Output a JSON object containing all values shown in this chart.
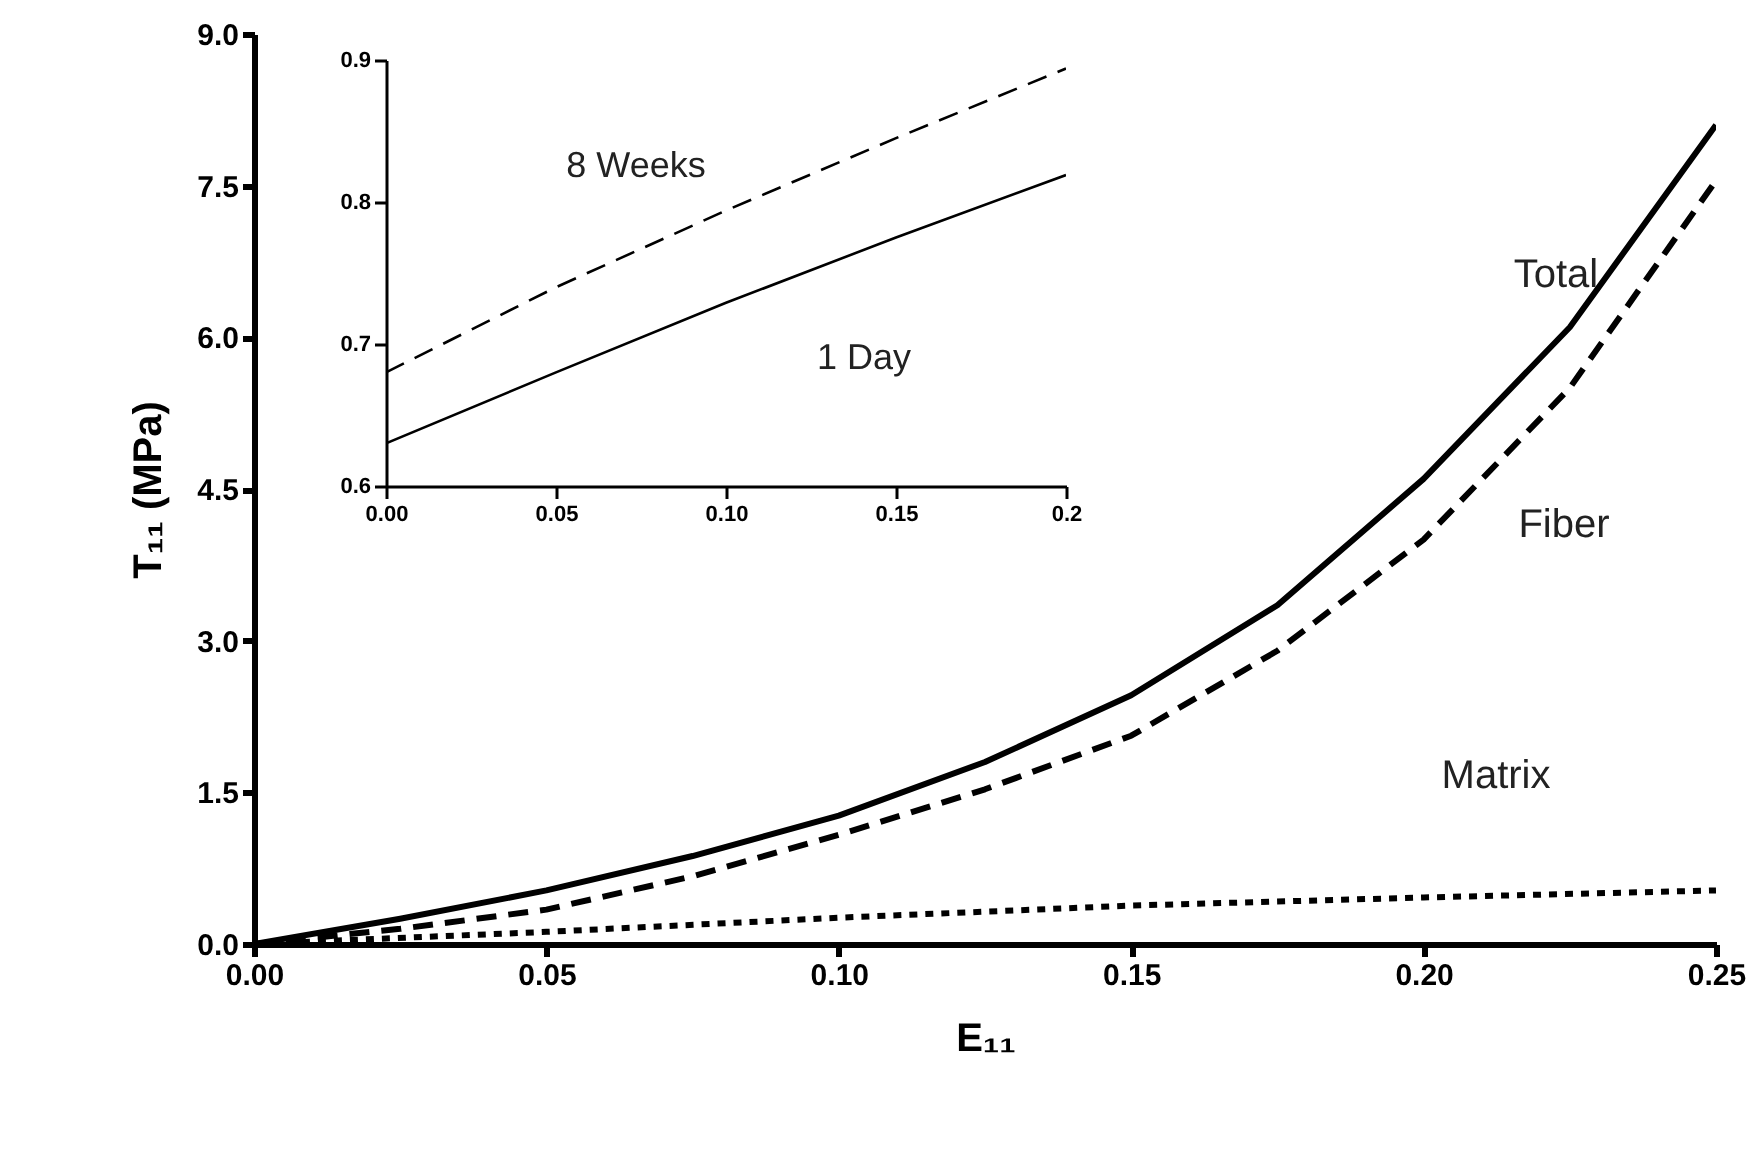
{
  "chart_data": [
    {
      "type": "line",
      "xlabel": "E₁₁",
      "ylabel": "T₁₁ (MPa)",
      "xlim": [
        0,
        0.25
      ],
      "ylim": [
        0,
        9
      ],
      "xticks": [
        {
          "value": 0,
          "label": "0.00"
        },
        0.05,
        {
          "value": 0.1,
          "label": "0.10"
        },
        0.15,
        {
          "value": 0.2,
          "label": "0.20"
        },
        0.25
      ],
      "yticks": [
        {
          "value": 0,
          "label": "0.0"
        },
        1.5,
        {
          "value": 3,
          "label": "3.0"
        },
        4.5,
        {
          "value": 6,
          "label": "6.0"
        },
        7.5,
        {
          "value": 9,
          "label": "9.0"
        }
      ],
      "grid": false,
      "marker": "none",
      "x": [
        0,
        0.025,
        0.05,
        0.075,
        0.1,
        0.125,
        0.15,
        0.175,
        0.2,
        0.225,
        0.25
      ],
      "series": [
        {
          "name": "Total",
          "color": "#000000",
          "line_style": "solid",
          "values": [
            0,
            0.25,
            0.53,
            0.87,
            1.27,
            1.8,
            2.46,
            3.35,
            4.6,
            6.1,
            8.1
          ]
        },
        {
          "name": "Fiber",
          "color": "#000000",
          "line_style": "dashed",
          "values": [
            0,
            0.15,
            0.34,
            0.67,
            1.08,
            1.53,
            2.06,
            2.9,
            4.0,
            5.5,
            7.55
          ]
        },
        {
          "name": "Matrix",
          "color": "#000000",
          "line_style": "dotted",
          "x": [
            0,
            0.05,
            0.1,
            0.15,
            0.2,
            0.25
          ],
          "values": [
            0,
            0.12,
            0.26,
            0.38,
            0.46,
            0.53
          ]
        }
      ]
    },
    {
      "type": "line",
      "xlim": [
        0,
        0.2
      ],
      "ylim": [
        0.6,
        0.9
      ],
      "xticks": [
        {
          "value": 0,
          "label": "0.00"
        },
        0.05,
        {
          "value": 0.1,
          "label": "0.10"
        },
        0.15,
        0.2
      ],
      "yticks": [
        0.6,
        0.7,
        0.8,
        0.9
      ],
      "grid": false,
      "marker": "none",
      "x": [
        0,
        0.05,
        0.1,
        0.15,
        0.2
      ],
      "series": [
        {
          "name": "8 Weeks",
          "color": "#000000",
          "line_style": "dashed",
          "values": [
            0.68,
            0.74,
            0.794,
            0.845,
            0.894
          ]
        },
        {
          "name": "1 Day",
          "color": "#000000",
          "line_style": "solid",
          "values": [
            0.63,
            0.68,
            0.729,
            0.775,
            0.819
          ]
        }
      ]
    }
  ]
}
